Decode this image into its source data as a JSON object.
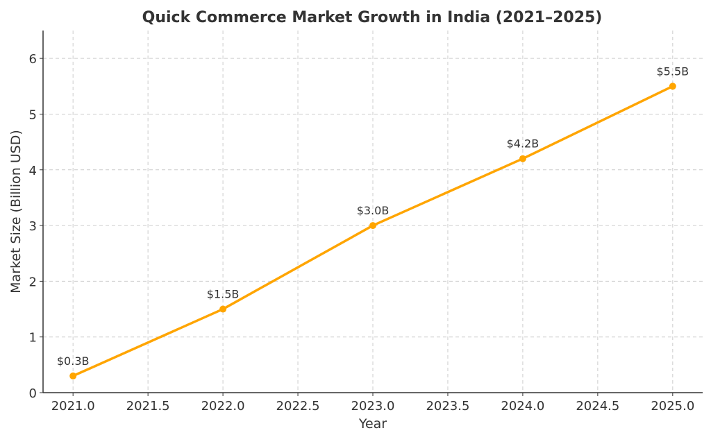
{
  "chart_data": {
    "type": "line",
    "title": "Quick Commerce Market Growth in India (2021–2025)",
    "xlabel": "Year",
    "ylabel": "Market Size (Billion USD)",
    "x": [
      2021,
      2022,
      2023,
      2024,
      2025
    ],
    "series": [
      {
        "name": "Market Size",
        "values": [
          0.3,
          1.5,
          3.0,
          4.2,
          5.5
        ],
        "color": "#FFA500"
      }
    ],
    "data_labels": [
      "$0.3B",
      "$1.5B",
      "$3.0B",
      "$4.2B",
      "$5.5B"
    ],
    "xlim": [
      2020.8,
      2025.2
    ],
    "ylim": [
      0,
      6.5
    ],
    "xticks": [
      2021.0,
      2021.5,
      2022.0,
      2022.5,
      2023.0,
      2023.5,
      2024.0,
      2024.5,
      2025.0
    ],
    "xtick_labels": [
      "2021.0",
      "2021.5",
      "2022.0",
      "2022.5",
      "2023.0",
      "2023.5",
      "2024.0",
      "2024.5",
      "2025.0"
    ],
    "yticks": [
      0,
      1,
      2,
      3,
      4,
      5,
      6
    ],
    "ytick_labels": [
      "0",
      "1",
      "2",
      "3",
      "4",
      "5",
      "6"
    ],
    "grid": true,
    "legend": "none"
  }
}
